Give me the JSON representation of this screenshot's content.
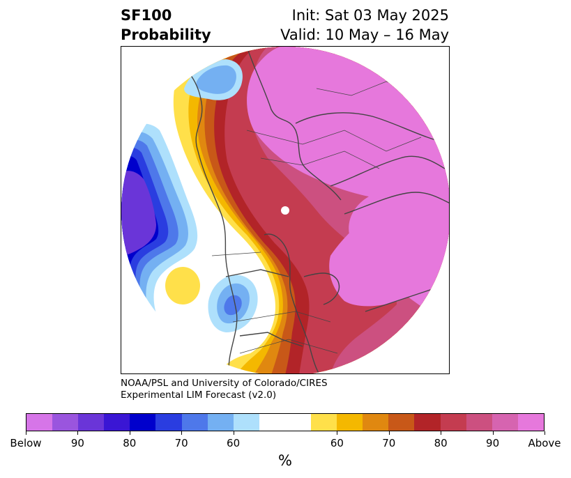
{
  "header": {
    "variable": "SF100",
    "product": "Probability",
    "init": "Init: Sat 03 May 2025",
    "valid": "Valid: 10 May – 16 May"
  },
  "credit": {
    "line1": "NOAA/PSL and University of Colorado/CIRES",
    "line2": "Experimental LIM Forecast (v2.0)"
  },
  "colorbar": {
    "unit": "%",
    "colors": [
      "#d675e8",
      "#9a55de",
      "#6a35d8",
      "#3a16d4",
      "#0000cc",
      "#2a3de0",
      "#4e78ea",
      "#74b0f2",
      "#aee0fc",
      "#ffffff",
      "#ffffff",
      "#ffe04a",
      "#f4b800",
      "#e08810",
      "#c85818",
      "#b22428",
      "#c43c50",
      "#cc5080",
      "#d664b0",
      "#e678dc"
    ],
    "ticks": [
      "Below",
      "90",
      "80",
      "70",
      "60",
      "60",
      "70",
      "80",
      "90",
      "Above"
    ]
  },
  "map": {
    "projection": "north-polar-stereographic",
    "field": "above/below normal probability",
    "colors": {
      "above_high": "#e678dc",
      "above_mid": "#cc5080",
      "above_dark": "#c43c50",
      "red": "#b22428",
      "orange_dark": "#c85818",
      "orange": "#e08810",
      "gold": "#f4b800",
      "yellow": "#ffe04a",
      "below_light": "#aee0fc",
      "below_sky": "#74b0f2",
      "below_blue": "#4e78ea",
      "below_royal": "#2a3de0",
      "below_navy": "#0000cc",
      "below_indigo": "#3a16d4",
      "below_purple": "#6a35d8",
      "coast": "#444444"
    }
  }
}
